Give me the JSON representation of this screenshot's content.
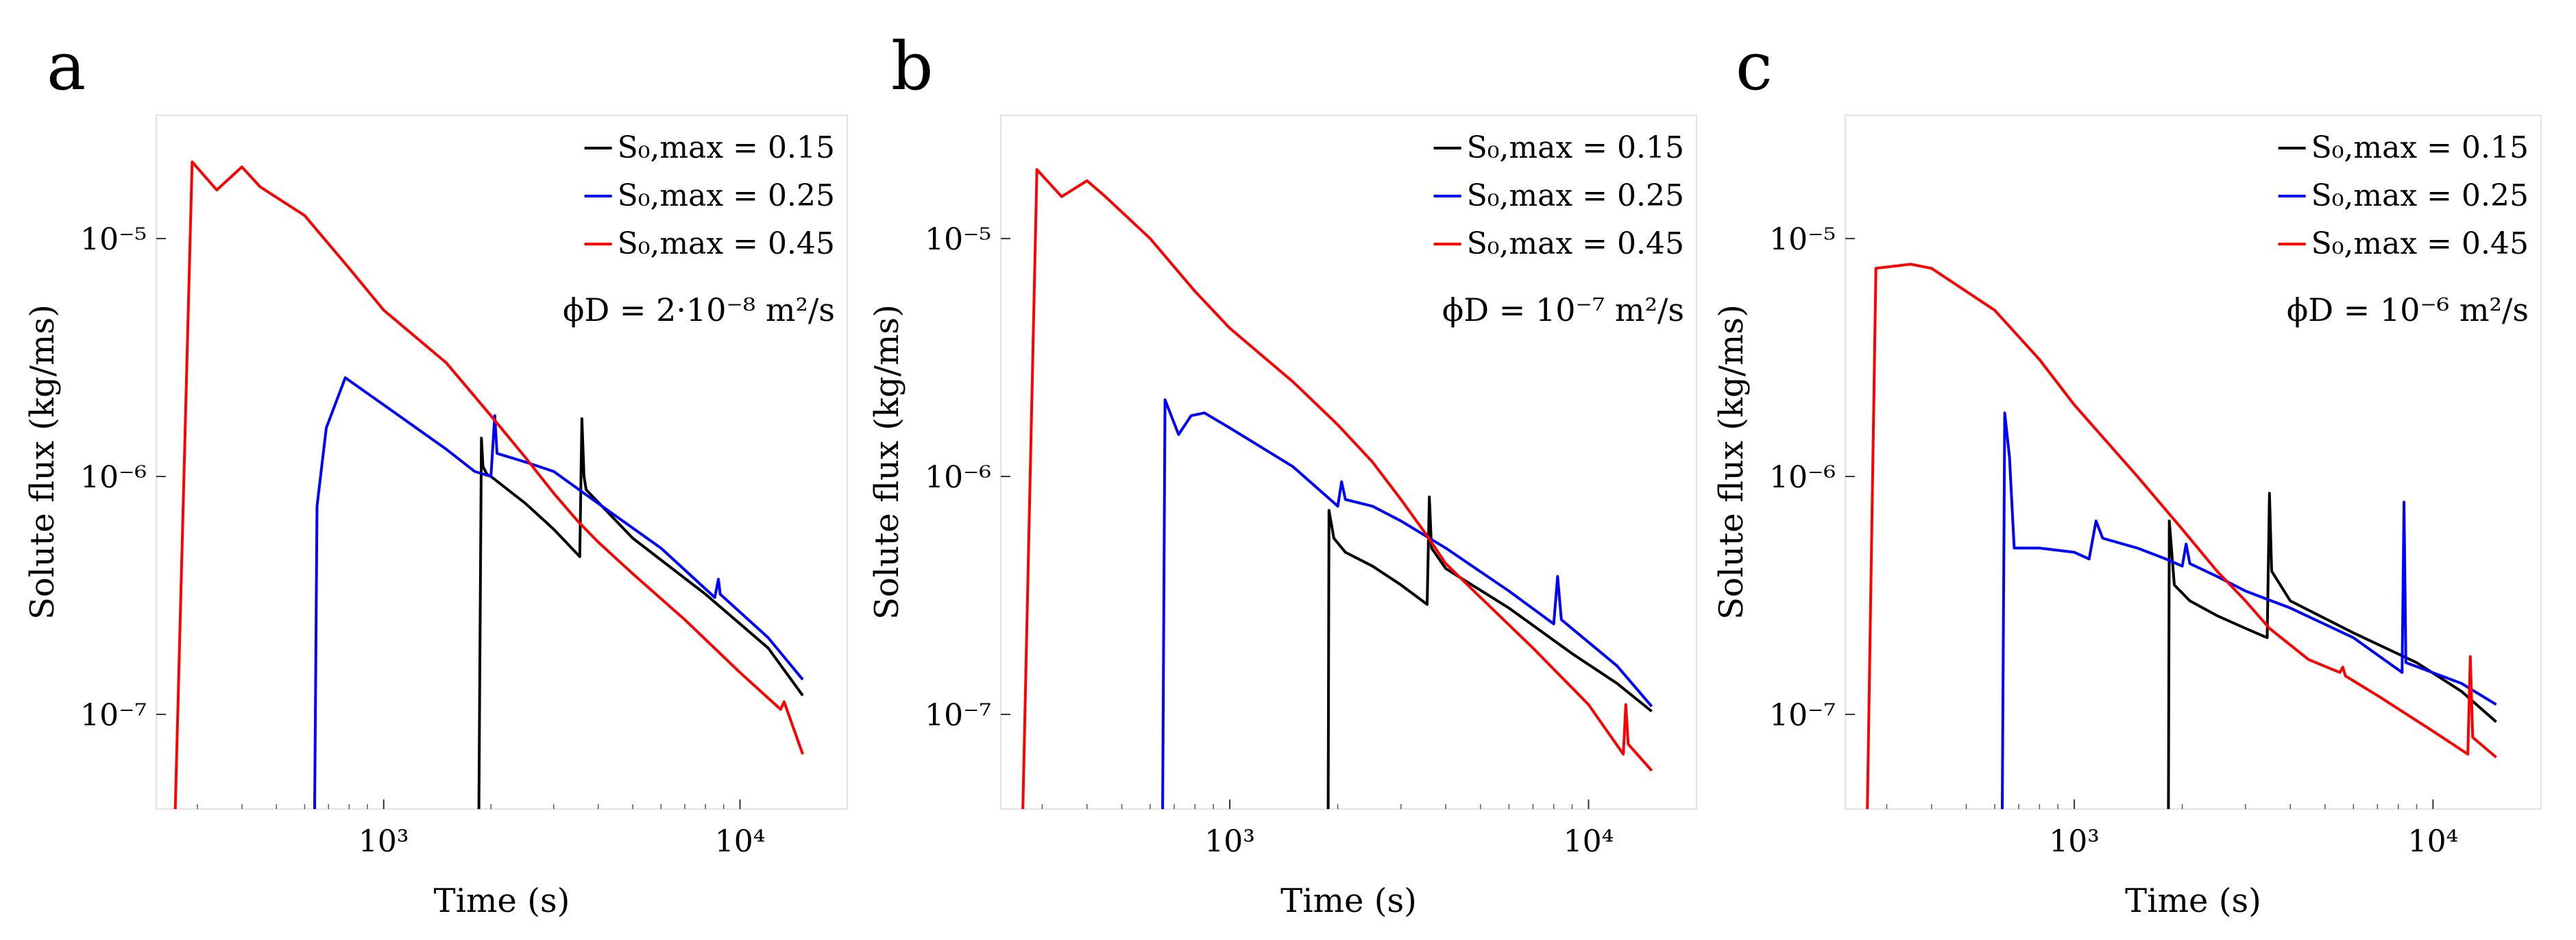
{
  "chart_data": [
    {
      "type": "line",
      "panel_label": "a",
      "annotation": "ϕD = 2·10⁻⁸ m²/s",
      "xlabel": "Time (s)",
      "ylabel": "Solute flux (kg/ms)",
      "x_scale": "log",
      "y_scale": "log",
      "xlim": [
        230,
        20000
      ],
      "ylim": [
        4e-08,
        3.3e-05
      ],
      "x_ticks": [
        1000,
        10000
      ],
      "x_tick_labels": [
        "10³",
        "10⁴"
      ],
      "y_ticks": [
        1e-07,
        1e-06,
        1e-05
      ],
      "y_tick_labels": [
        "10⁻⁷",
        "10⁻⁶",
        "10⁻⁵"
      ],
      "legend_position": "top-right",
      "series": [
        {
          "name": "S₀,max = 0.15",
          "color": "#000000",
          "points": [
            [
              1850,
              4e-08
            ],
            [
              1880,
              1.45e-06
            ],
            [
              1900,
              1.1e-06
            ],
            [
              1950,
              1.02e-06
            ],
            [
              2000,
              1e-06
            ],
            [
              2500,
              7.7e-07
            ],
            [
              3000,
              6e-07
            ],
            [
              3550,
              4.6e-07
            ],
            [
              3600,
              1.75e-06
            ],
            [
              3650,
              1e-06
            ],
            [
              3700,
              8.8e-07
            ],
            [
              5000,
              5.5e-07
            ],
            [
              8000,
              3.2e-07
            ],
            [
              12000,
              1.9e-07
            ],
            [
              15000,
              1.2e-07
            ]
          ]
        },
        {
          "name": "S₀,max = 0.25",
          "color": "#0000ff",
          "points": [
            [
              640,
              4e-08
            ],
            [
              650,
              7.5e-07
            ],
            [
              690,
              1.6e-06
            ],
            [
              780,
              2.6e-06
            ],
            [
              1000,
              2e-06
            ],
            [
              1500,
              1.3e-06
            ],
            [
              1800,
              1.05e-06
            ],
            [
              2000,
              1e-06
            ],
            [
              2050,
              1.8e-06
            ],
            [
              2080,
              1.25e-06
            ],
            [
              2500,
              1.15e-06
            ],
            [
              3000,
              1.05e-06
            ],
            [
              4000,
              7.7e-07
            ],
            [
              6000,
              5e-07
            ],
            [
              8500,
              3.1e-07
            ],
            [
              8700,
              3.7e-07
            ],
            [
              8800,
              3.2e-07
            ],
            [
              12000,
              2.1e-07
            ],
            [
              15000,
              1.4e-07
            ]
          ]
        },
        {
          "name": "S₀,max = 0.45",
          "color": "#ff0000",
          "points": [
            [
              260,
              4e-08
            ],
            [
              290,
              2.1e-05
            ],
            [
              340,
              1.6e-05
            ],
            [
              400,
              2e-05
            ],
            [
              450,
              1.65e-05
            ],
            [
              600,
              1.25e-05
            ],
            [
              800,
              7.5e-06
            ],
            [
              1000,
              5e-06
            ],
            [
              1500,
              3e-06
            ],
            [
              2000,
              1.8e-06
            ],
            [
              2500,
              1.2e-06
            ],
            [
              3000,
              8.5e-07
            ],
            [
              3500,
              6.5e-07
            ],
            [
              4000,
              5.3e-07
            ],
            [
              5000,
              3.9e-07
            ],
            [
              7000,
              2.5e-07
            ],
            [
              10000,
              1.5e-07
            ],
            [
              13000,
              1.05e-07
            ],
            [
              13300,
              1.13e-07
            ],
            [
              15000,
              6.8e-08
            ]
          ]
        }
      ]
    },
    {
      "type": "line",
      "panel_label": "b",
      "annotation": "ϕD = 10⁻⁷ m²/s",
      "xlabel": "Time (s)",
      "ylabel": "Solute flux (kg/ms)",
      "x_scale": "log",
      "y_scale": "log",
      "xlim": [
        230,
        20000
      ],
      "ylim": [
        4e-08,
        3.3e-05
      ],
      "x_ticks": [
        1000,
        10000
      ],
      "x_tick_labels": [
        "10³",
        "10⁴"
      ],
      "y_ticks": [
        1e-07,
        1e-06,
        1e-05
      ],
      "y_tick_labels": [
        "10⁻⁷",
        "10⁻⁶",
        "10⁻⁵"
      ],
      "legend_position": "top-right",
      "series": [
        {
          "name": "S₀,max = 0.15",
          "color": "#000000",
          "points": [
            [
              1880,
              4e-08
            ],
            [
              1890,
              7.2e-07
            ],
            [
              1950,
              5.5e-07
            ],
            [
              2100,
              4.8e-07
            ],
            [
              2500,
              4.2e-07
            ],
            [
              3000,
              3.5e-07
            ],
            [
              3550,
              2.9e-07
            ],
            [
              3600,
              8.2e-07
            ],
            [
              3650,
              5e-07
            ],
            [
              4000,
              4.1e-07
            ],
            [
              6000,
              2.8e-07
            ],
            [
              9000,
              1.8e-07
            ],
            [
              12000,
              1.35e-07
            ],
            [
              15000,
              1.03e-07
            ]
          ]
        },
        {
          "name": "S₀,max = 0.25",
          "color": "#0000ff",
          "points": [
            [
              650,
              4e-08
            ],
            [
              660,
              2.1e-06
            ],
            [
              720,
              1.5e-06
            ],
            [
              780,
              1.8e-06
            ],
            [
              850,
              1.85e-06
            ],
            [
              1000,
              1.6e-06
            ],
            [
              1500,
              1.1e-06
            ],
            [
              2000,
              7.5e-07
            ],
            [
              2050,
              9.5e-07
            ],
            [
              2100,
              8e-07
            ],
            [
              2500,
              7.5e-07
            ],
            [
              3000,
              6.5e-07
            ],
            [
              4000,
              5e-07
            ],
            [
              6000,
              3.3e-07
            ],
            [
              8000,
              2.4e-07
            ],
            [
              8200,
              3.8e-07
            ],
            [
              8400,
              2.5e-07
            ],
            [
              12000,
              1.6e-07
            ],
            [
              15000,
              1.08e-07
            ]
          ]
        },
        {
          "name": "S₀,max = 0.45",
          "color": "#ff0000",
          "points": [
            [
              265,
              4e-08
            ],
            [
              290,
              1.95e-05
            ],
            [
              340,
              1.5e-05
            ],
            [
              400,
              1.75e-05
            ],
            [
              450,
              1.5e-05
            ],
            [
              600,
              1e-05
            ],
            [
              800,
              6e-06
            ],
            [
              1000,
              4.2e-06
            ],
            [
              1500,
              2.5e-06
            ],
            [
              2000,
              1.65e-06
            ],
            [
              2500,
              1.15e-06
            ],
            [
              3000,
              8e-07
            ],
            [
              3500,
              5.8e-07
            ],
            [
              4000,
              4.3e-07
            ],
            [
              5000,
              3.1e-07
            ],
            [
              7000,
              1.9e-07
            ],
            [
              10000,
              1.1e-07
            ],
            [
              12500,
              6.8e-08
            ],
            [
              12700,
              1.1e-07
            ],
            [
              12900,
              7.5e-08
            ],
            [
              15000,
              5.8e-08
            ]
          ]
        }
      ]
    },
    {
      "type": "line",
      "panel_label": "c",
      "annotation": "ϕD = 10⁻⁶ m²/s",
      "xlabel": "Time (s)",
      "ylabel": "Solute flux (kg/ms)",
      "x_scale": "log",
      "y_scale": "log",
      "xlim": [
        230,
        20000
      ],
      "ylim": [
        4e-08,
        3.3e-05
      ],
      "x_ticks": [
        1000,
        10000
      ],
      "x_tick_labels": [
        "10³",
        "10⁴"
      ],
      "y_ticks": [
        1e-07,
        1e-06,
        1e-05
      ],
      "y_tick_labels": [
        "10⁻⁷",
        "10⁻⁶",
        "10⁻⁵"
      ],
      "legend_position": "top-right",
      "series": [
        {
          "name": "S₀,max = 0.15",
          "color": "#000000",
          "points": [
            [
              1830,
              4e-08
            ],
            [
              1840,
              6.5e-07
            ],
            [
              1900,
              3.5e-07
            ],
            [
              2100,
              3e-07
            ],
            [
              2500,
              2.6e-07
            ],
            [
              3000,
              2.3e-07
            ],
            [
              3450,
              2.1e-07
            ],
            [
              3500,
              8.5e-07
            ],
            [
              3550,
              4e-07
            ],
            [
              4000,
              3e-07
            ],
            [
              6000,
              2.2e-07
            ],
            [
              9000,
              1.65e-07
            ],
            [
              12000,
              1.25e-07
            ],
            [
              15000,
              9.3e-08
            ]
          ]
        },
        {
          "name": "S₀,max = 0.25",
          "color": "#0000ff",
          "points": [
            [
              630,
              4e-08
            ],
            [
              640,
              1.85e-06
            ],
            [
              660,
              1.2e-06
            ],
            [
              680,
              5e-07
            ],
            [
              800,
              5e-07
            ],
            [
              1000,
              4.8e-07
            ],
            [
              1100,
              4.5e-07
            ],
            [
              1150,
              6.5e-07
            ],
            [
              1200,
              5.5e-07
            ],
            [
              1500,
              5e-07
            ],
            [
              1800,
              4.5e-07
            ],
            [
              2000,
              4.2e-07
            ],
            [
              2050,
              5.2e-07
            ],
            [
              2100,
              4.3e-07
            ],
            [
              2500,
              3.8e-07
            ],
            [
              3000,
              3.3e-07
            ],
            [
              4000,
              2.8e-07
            ],
            [
              6000,
              2.1e-07
            ],
            [
              8200,
              1.5e-07
            ],
            [
              8300,
              7.8e-07
            ],
            [
              8400,
              1.65e-07
            ],
            [
              12000,
              1.35e-07
            ],
            [
              15000,
              1.1e-07
            ]
          ]
        },
        {
          "name": "S₀,max = 0.45",
          "color": "#ff0000",
          "points": [
            [
              265,
              4e-08
            ],
            [
              280,
              7.5e-06
            ],
            [
              350,
              7.8e-06
            ],
            [
              400,
              7.5e-06
            ],
            [
              600,
              5e-06
            ],
            [
              800,
              3.1e-06
            ],
            [
              1000,
              2e-06
            ],
            [
              1500,
              1e-06
            ],
            [
              2000,
              6e-07
            ],
            [
              2500,
              4e-07
            ],
            [
              3000,
              3e-07
            ],
            [
              3500,
              2.3e-07
            ],
            [
              4500,
              1.7e-07
            ],
            [
              5500,
              1.5e-07
            ],
            [
              5600,
              1.58e-07
            ],
            [
              5700,
              1.45e-07
            ],
            [
              7000,
              1.2e-07
            ],
            [
              10000,
              8.5e-08
            ],
            [
              12500,
              6.8e-08
            ],
            [
              12700,
              1.75e-07
            ],
            [
              12900,
              8e-08
            ],
            [
              15000,
              6.6e-08
            ]
          ]
        }
      ]
    }
  ]
}
